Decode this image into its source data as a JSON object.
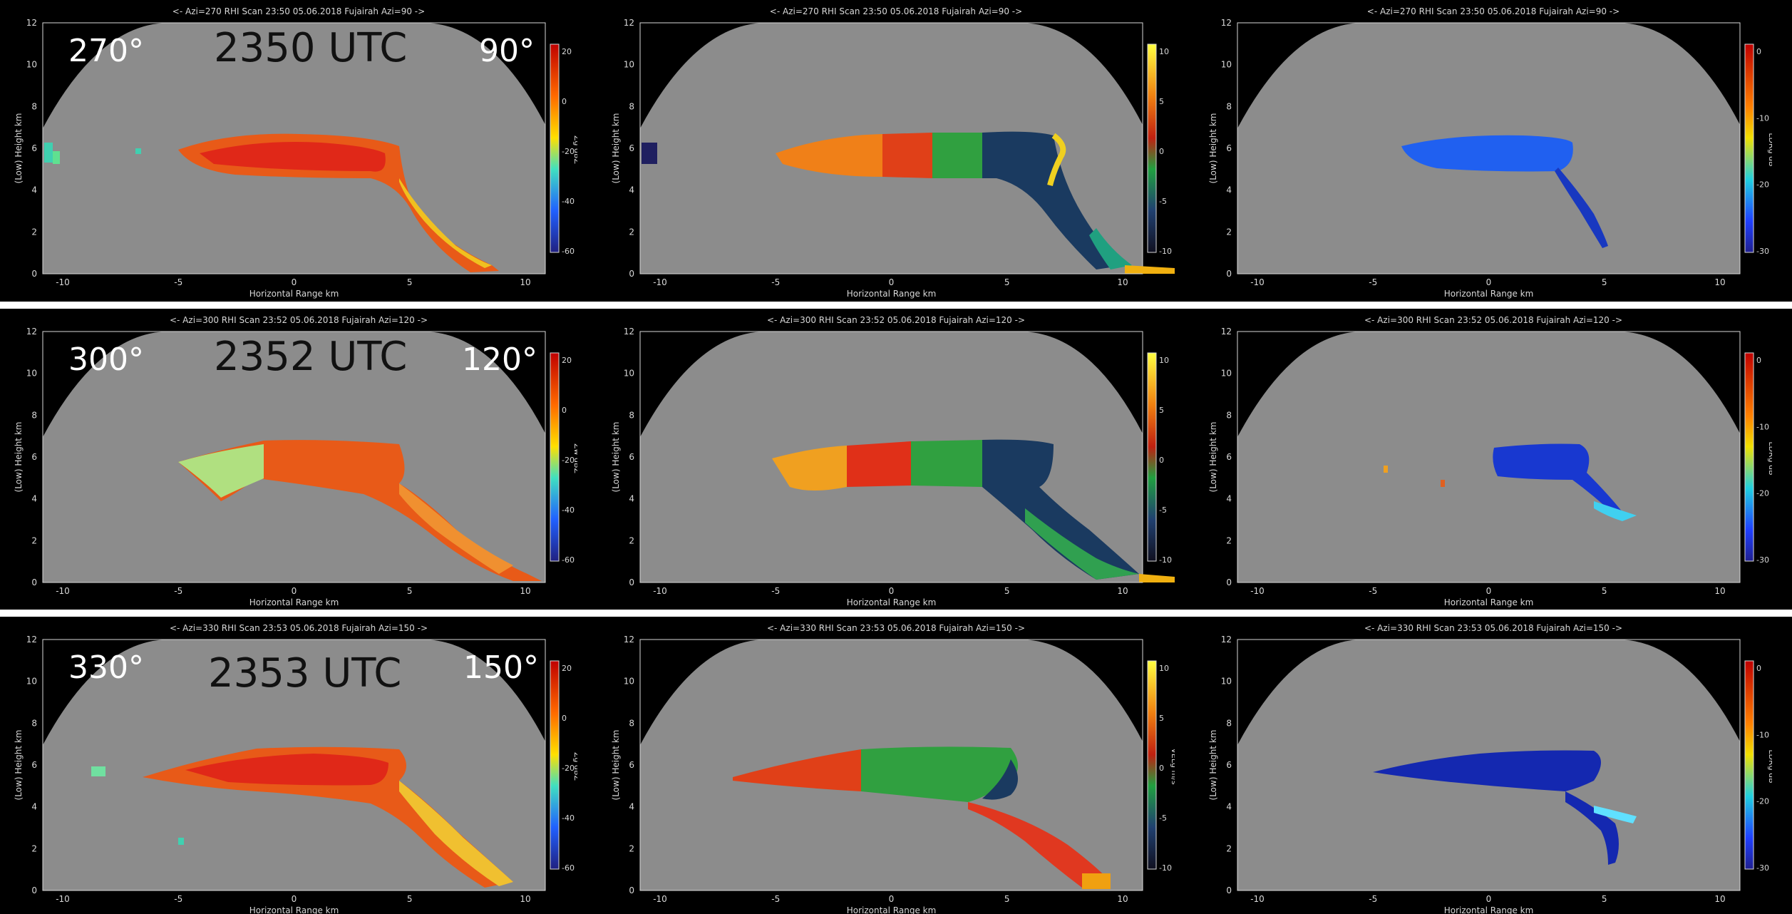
{
  "rows": [
    {
      "time": "2350 UTC",
      "left_azimuth": "270°",
      "right_azimuth": "90°",
      "header": "<- Azi=270   RHI Scan   23:50 05.06.2018 Fujairah   Azi=90 ->"
    },
    {
      "time": "2352 UTC",
      "left_azimuth": "300°",
      "right_azimuth": "120°",
      "header": "<- Azi=300   RHI Scan   23:52 05.06.2018 Fujairah   Azi=120 ->"
    },
    {
      "time": "2353 UTC",
      "left_azimuth": "330°",
      "right_azimuth": "150°",
      "header": "<- Azi=330   RHI Scan   23:53 05.06.2018 Fujairah   Azi=150 ->"
    }
  ],
  "axes": {
    "xlabel": "Horizontal Range km",
    "ylabel": "(Low) Height km",
    "x_ticks": [
      "-10",
      "-5",
      "0",
      "5",
      "10"
    ],
    "y_ticks": [
      "0",
      "2",
      "4",
      "6",
      "8",
      "10",
      "12"
    ]
  },
  "colorbars": {
    "reflectivity": {
      "label_row1": "Zg dBZ",
      "label_row2": "Zw dBZ",
      "label_row3": "Zg dBZ",
      "ticks": [
        "20",
        "0",
        "-20",
        "-40",
        "-60"
      ]
    },
    "velocity": {
      "label_row3": "VELg m/s",
      "ticks": [
        "10",
        "5",
        "0",
        "-5",
        "-10"
      ]
    },
    "ldr": {
      "label": "LDRg dB",
      "ticks": [
        "0",
        "-10",
        "-20",
        "-30"
      ]
    }
  },
  "colors": {
    "background": "#000000",
    "field": "#8c8c8c",
    "separator": "#ffffff"
  }
}
